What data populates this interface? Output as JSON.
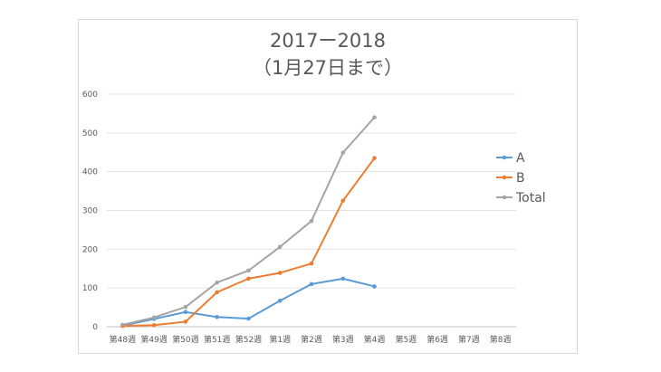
{
  "chart_data": {
    "type": "line",
    "title": "2017ー2018",
    "subtitle": "（1月27日まで）",
    "xlabel": "",
    "ylabel": "",
    "categories": [
      "第48週",
      "第49週",
      "第50週",
      "第51週",
      "第52週",
      "第1週",
      "第2週",
      "第3週",
      "第4週",
      "第5週",
      "第6週",
      "第7週",
      "第8週"
    ],
    "ylim": [
      0,
      600
    ],
    "yticks": [
      0,
      100,
      200,
      300,
      400,
      500,
      600
    ],
    "grid": true,
    "legend_position": "right",
    "series": [
      {
        "name": "A",
        "color": "#5b9bd5",
        "values": [
          3,
          20,
          38,
          25,
          21,
          67,
          110,
          124,
          104,
          null,
          null,
          null,
          null
        ]
      },
      {
        "name": "B",
        "color": "#ed7d31",
        "values": [
          2,
          4,
          13,
          89,
          124,
          139,
          163,
          325,
          435,
          null,
          null,
          null,
          null
        ]
      },
      {
        "name": "Total",
        "color": "#a5a5a5",
        "values": [
          5,
          24,
          51,
          114,
          145,
          206,
          273,
          449,
          540,
          null,
          null,
          null,
          null
        ]
      }
    ]
  }
}
